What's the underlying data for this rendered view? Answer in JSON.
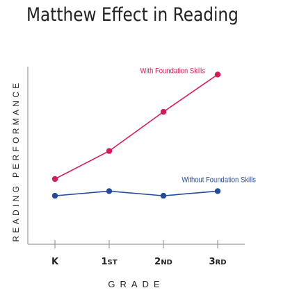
{
  "chart_data": {
    "type": "line",
    "title": "Matthew Effect in Reading",
    "xlabel": "GRADE",
    "ylabel": "READING PERFORMANCE",
    "categories": [
      "K",
      "1ST",
      "2ND",
      "3RD"
    ],
    "series": [
      {
        "name": "With Foundation Skills",
        "color": "#d6195a",
        "values": [
          3.5,
          5.0,
          7.1,
          9.1
        ]
      },
      {
        "name": "Without  Foundation Skills",
        "color": "#234b9a",
        "values": [
          2.6,
          2.85,
          2.6,
          2.85
        ]
      }
    ],
    "ylim": [
      0,
      10
    ],
    "grid": false,
    "legend": "inline labels next to lines"
  },
  "colors": {
    "axis": "#9a9a9a",
    "text": "#222222"
  }
}
